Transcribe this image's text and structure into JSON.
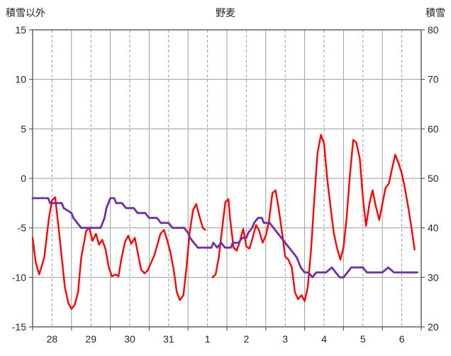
{
  "header": {
    "left_axis_title": "積雪以外",
    "chart_title": "野麦",
    "right_axis_title": "積雪"
  },
  "chart_data": {
    "type": "line",
    "title": "野麦",
    "left_axis": {
      "label": "積雪以外",
      "min": -15,
      "max": 15,
      "ticks": [
        15,
        10,
        5,
        0,
        -5,
        -10,
        -15
      ]
    },
    "right_axis": {
      "label": "積雪",
      "min": 20,
      "max": 80,
      "ticks": [
        80,
        70,
        60,
        50,
        40,
        30,
        20
      ]
    },
    "x_axis": {
      "labels": [
        "28",
        "29",
        "30",
        "31",
        "1",
        "2",
        "3",
        "4",
        "5",
        "6"
      ],
      "domain": [
        0,
        10
      ],
      "grid_solid_every": 1,
      "grid_dashed_offset": 0.5
    },
    "grid": true,
    "legend": "none",
    "colors": {
      "temperature": "#ff0000",
      "snow": "#7030a0",
      "gridline": "#9d9d9d",
      "border": "#595959"
    },
    "series": [
      {
        "name": "積雪以外",
        "axis": "left",
        "color": "#ff0000",
        "width": 2.4,
        "points": [
          [
            0.0,
            -6.0
          ],
          [
            0.08,
            -8.5
          ],
          [
            0.17,
            -9.7
          ],
          [
            0.3,
            -8.0
          ],
          [
            0.42,
            -4.0
          ],
          [
            0.5,
            -2.2
          ],
          [
            0.58,
            -1.9
          ],
          [
            0.67,
            -5.0
          ],
          [
            0.75,
            -8.0
          ],
          [
            0.83,
            -11.0
          ],
          [
            0.92,
            -12.6
          ],
          [
            1.0,
            -13.2
          ],
          [
            1.08,
            -12.8
          ],
          [
            1.17,
            -11.5
          ],
          [
            1.25,
            -8.0
          ],
          [
            1.38,
            -5.3
          ],
          [
            1.46,
            -5.0
          ],
          [
            1.54,
            -6.3
          ],
          [
            1.63,
            -5.6
          ],
          [
            1.71,
            -6.7
          ],
          [
            1.79,
            -6.2
          ],
          [
            1.88,
            -7.2
          ],
          [
            1.96,
            -9.0
          ],
          [
            2.04,
            -9.9
          ],
          [
            2.13,
            -9.7
          ],
          [
            2.21,
            -9.9
          ],
          [
            2.29,
            -8.0
          ],
          [
            2.38,
            -6.4
          ],
          [
            2.46,
            -5.8
          ],
          [
            2.54,
            -6.6
          ],
          [
            2.63,
            -6.0
          ],
          [
            2.71,
            -7.6
          ],
          [
            2.79,
            -9.2
          ],
          [
            2.88,
            -9.6
          ],
          [
            2.96,
            -9.3
          ],
          [
            3.04,
            -8.6
          ],
          [
            3.13,
            -7.8
          ],
          [
            3.21,
            -6.7
          ],
          [
            3.29,
            -5.6
          ],
          [
            3.38,
            -5.2
          ],
          [
            3.46,
            -6.2
          ],
          [
            3.54,
            -7.4
          ],
          [
            3.63,
            -9.2
          ],
          [
            3.71,
            -11.5
          ],
          [
            3.79,
            -12.3
          ],
          [
            3.88,
            -11.8
          ],
          [
            3.96,
            -9.0
          ],
          [
            4.04,
            -5.5
          ],
          [
            4.13,
            -3.2
          ],
          [
            4.21,
            -2.6
          ],
          [
            4.29,
            -3.8
          ],
          [
            4.38,
            -5.0
          ],
          [
            4.44,
            -5.2
          ],
          [
            4.52,
            null
          ],
          [
            4.63,
            -10.0
          ],
          [
            4.71,
            -9.7
          ],
          [
            4.79,
            -8.0
          ],
          [
            4.88,
            -5.0
          ],
          [
            4.96,
            -2.4
          ],
          [
            5.04,
            -2.1
          ],
          [
            5.08,
            -4.0
          ],
          [
            5.17,
            -7.0
          ],
          [
            5.25,
            -7.3
          ],
          [
            5.33,
            -6.4
          ],
          [
            5.42,
            -5.1
          ],
          [
            5.5,
            -6.9
          ],
          [
            5.58,
            -7.1
          ],
          [
            5.67,
            -5.9
          ],
          [
            5.75,
            -4.7
          ],
          [
            5.83,
            -5.3
          ],
          [
            5.92,
            -6.5
          ],
          [
            6.0,
            -5.8
          ],
          [
            6.08,
            -4.4
          ],
          [
            6.17,
            -1.5
          ],
          [
            6.25,
            -1.2
          ],
          [
            6.33,
            -3.0
          ],
          [
            6.42,
            -5.5
          ],
          [
            6.5,
            -7.9
          ],
          [
            6.58,
            -8.2
          ],
          [
            6.67,
            -9.0
          ],
          [
            6.75,
            -11.5
          ],
          [
            6.83,
            -12.2
          ],
          [
            6.92,
            -11.8
          ],
          [
            7.0,
            -12.4
          ],
          [
            7.08,
            -11.0
          ],
          [
            7.17,
            -7.0
          ],
          [
            7.25,
            -2.0
          ],
          [
            7.33,
            2.5
          ],
          [
            7.42,
            4.4
          ],
          [
            7.5,
            3.5
          ],
          [
            7.58,
            0.0
          ],
          [
            7.67,
            -3.0
          ],
          [
            7.75,
            -5.5
          ],
          [
            7.83,
            -7.0
          ],
          [
            7.92,
            -8.2
          ],
          [
            8.0,
            -7.0
          ],
          [
            8.08,
            -4.0
          ],
          [
            8.17,
            0.5
          ],
          [
            8.25,
            3.9
          ],
          [
            8.33,
            3.6
          ],
          [
            8.42,
            2.0
          ],
          [
            8.5,
            -2.0
          ],
          [
            8.58,
            -4.8
          ],
          [
            8.67,
            -2.5
          ],
          [
            8.75,
            -1.2
          ],
          [
            8.83,
            -2.8
          ],
          [
            8.92,
            -4.2
          ],
          [
            9.0,
            -2.6
          ],
          [
            9.08,
            -1.0
          ],
          [
            9.17,
            -0.5
          ],
          [
            9.25,
            1.0
          ],
          [
            9.33,
            2.4
          ],
          [
            9.42,
            1.5
          ],
          [
            9.5,
            0.5
          ],
          [
            9.58,
            -1.0
          ],
          [
            9.67,
            -3.0
          ],
          [
            9.75,
            -5.0
          ],
          [
            9.83,
            -7.2
          ]
        ]
      },
      {
        "name": "積雪",
        "axis": "right",
        "color": "#7030a0",
        "width": 2.8,
        "points": [
          [
            0.0,
            46
          ],
          [
            0.4,
            46
          ],
          [
            0.45,
            45
          ],
          [
            0.75,
            45
          ],
          [
            0.8,
            44
          ],
          [
            1.0,
            43
          ],
          [
            1.05,
            42
          ],
          [
            1.15,
            41
          ],
          [
            1.25,
            40
          ],
          [
            1.75,
            40
          ],
          [
            1.8,
            41
          ],
          [
            1.85,
            42
          ],
          [
            1.9,
            44
          ],
          [
            1.95,
            45
          ],
          [
            2.0,
            46
          ],
          [
            2.1,
            46
          ],
          [
            2.15,
            45
          ],
          [
            2.3,
            45
          ],
          [
            2.4,
            44
          ],
          [
            2.6,
            44
          ],
          [
            2.7,
            43
          ],
          [
            2.9,
            43
          ],
          [
            3.0,
            42
          ],
          [
            3.2,
            42
          ],
          [
            3.3,
            41
          ],
          [
            3.5,
            41
          ],
          [
            3.6,
            40
          ],
          [
            3.9,
            40
          ],
          [
            4.0,
            39
          ],
          [
            4.05,
            38
          ],
          [
            4.15,
            37
          ],
          [
            4.25,
            36
          ],
          [
            4.6,
            36
          ],
          [
            4.65,
            37
          ],
          [
            4.75,
            36
          ],
          [
            4.85,
            37
          ],
          [
            4.95,
            36
          ],
          [
            5.1,
            36
          ],
          [
            5.15,
            37
          ],
          [
            5.3,
            37
          ],
          [
            5.4,
            38
          ],
          [
            5.5,
            38
          ],
          [
            5.55,
            39
          ],
          [
            5.65,
            40
          ],
          [
            5.7,
            41
          ],
          [
            5.8,
            42
          ],
          [
            5.9,
            42
          ],
          [
            5.95,
            41
          ],
          [
            6.1,
            41
          ],
          [
            6.2,
            40
          ],
          [
            6.3,
            39
          ],
          [
            6.4,
            38
          ],
          [
            6.5,
            37
          ],
          [
            6.6,
            36
          ],
          [
            6.7,
            35
          ],
          [
            6.8,
            34
          ],
          [
            6.9,
            32
          ],
          [
            7.0,
            31
          ],
          [
            7.1,
            31
          ],
          [
            7.2,
            30
          ],
          [
            7.3,
            31
          ],
          [
            7.55,
            31
          ],
          [
            7.7,
            32
          ],
          [
            7.8,
            31
          ],
          [
            7.9,
            30
          ],
          [
            8.0,
            30
          ],
          [
            8.1,
            31
          ],
          [
            8.2,
            32
          ],
          [
            8.5,
            32
          ],
          [
            8.6,
            31
          ],
          [
            9.0,
            31
          ],
          [
            9.15,
            32
          ],
          [
            9.3,
            31
          ],
          [
            9.9,
            31
          ]
        ]
      }
    ]
  }
}
